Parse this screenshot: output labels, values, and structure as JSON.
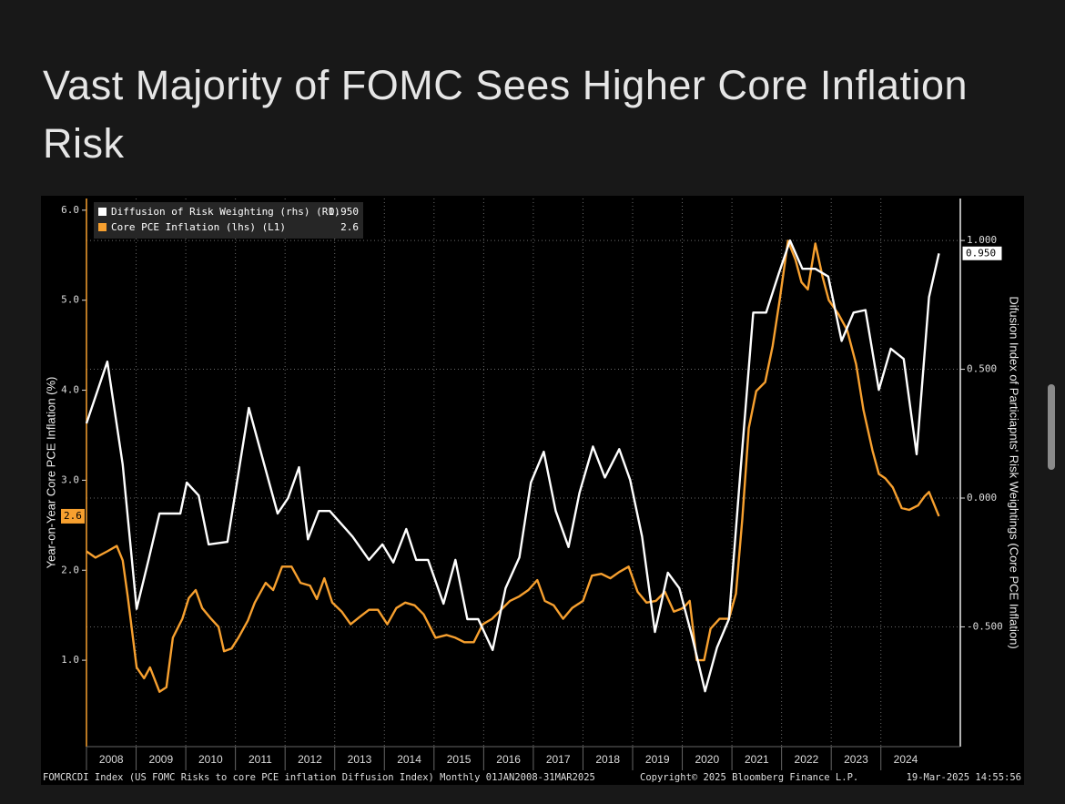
{
  "chart_data": {
    "type": "line",
    "title": "Vast Majority of FOMC Sees Higher Core Inflation Risk",
    "ylabel": "Year-on-Year Core PCE Inflation (%)",
    "y2label": "Difusion Index of Particiapnts' Risk Weightings (Core PCE Inflation)",
    "footnote": "FOMCRCDI Index (US FOMC Risks to core PCE inflation Diffusion Index)  Monthly 01JAN2008-31MAR2025",
    "copyright": "Copyright© 2025 Bloomberg Finance L.P.",
    "timestamp": "19-Mar-2025 14:55:56",
    "legend": "upper left",
    "grid": true,
    "xlim": [
      2008,
      2025.6
    ],
    "xticks": [
      2008,
      2009,
      2010,
      2011,
      2012,
      2013,
      2014,
      2015,
      2016,
      2017,
      2018,
      2019,
      2020,
      2021,
      2022,
      2023,
      2024
    ],
    "ylim": [
      0.04,
      6.13
    ],
    "yticks": [
      {
        "value": 1,
        "label": "1.0"
      },
      {
        "value": 2,
        "label": "2.0"
      },
      {
        "value": 3,
        "label": "3.0"
      },
      {
        "value": 4,
        "label": "4.0"
      },
      {
        "value": 5,
        "label": "5.0"
      },
      {
        "value": 6,
        "label": "6.0"
      }
    ],
    "y2lim": [
      -0.965,
      1.163
    ],
    "y2ticks": [
      {
        "value": -0.5,
        "label": "-0.500"
      },
      {
        "value": 0,
        "label": "0.000"
      },
      {
        "value": 0.5,
        "label": "0.500"
      },
      {
        "value": 1,
        "label": "1.000"
      }
    ],
    "series": [
      {
        "name": "Diffusion of Risk Weighting (rhs) (R1)",
        "color": "#ffffff",
        "axis": "y2",
        "last_label": "0.950",
        "x": [
          2008.0,
          2008.42,
          2008.73,
          2009.01,
          2009.25,
          2009.47,
          2009.89,
          2010.02,
          2010.26,
          2010.46,
          2010.84,
          2011.03,
          2011.27,
          2011.58,
          2011.85,
          2012.06,
          2012.28,
          2012.46,
          2012.68,
          2012.9,
          2013.36,
          2013.69,
          2013.96,
          2014.18,
          2014.44,
          2014.64,
          2014.88,
          2015.19,
          2015.43,
          2015.67,
          2015.89,
          2016.18,
          2016.44,
          2016.72,
          2016.95,
          2017.21,
          2017.45,
          2017.71,
          2017.93,
          2018.2,
          2018.44,
          2018.73,
          2018.95,
          2019.19,
          2019.45,
          2019.71,
          2019.94,
          2020.2,
          2020.46,
          2020.7,
          2020.94,
          2021.17,
          2021.43,
          2021.69,
          2021.94,
          2022.17,
          2022.42,
          2022.68,
          2022.94,
          2023.21,
          2023.45,
          2023.69,
          2023.96,
          2024.2,
          2024.46,
          2024.72,
          2024.97,
          2025.17
        ],
        "values": [
          0.29,
          0.53,
          0.13,
          -0.43,
          -0.24,
          -0.06,
          -0.06,
          0.06,
          0.01,
          -0.18,
          -0.17,
          0.06,
          0.35,
          0.13,
          -0.06,
          0.0,
          0.12,
          -0.16,
          -0.05,
          -0.05,
          -0.15,
          -0.24,
          -0.18,
          -0.25,
          -0.12,
          -0.24,
          -0.24,
          -0.41,
          -0.24,
          -0.47,
          -0.47,
          -0.59,
          -0.35,
          -0.23,
          0.06,
          0.18,
          -0.05,
          -0.19,
          0.02,
          0.2,
          0.08,
          0.19,
          0.07,
          -0.15,
          -0.52,
          -0.29,
          -0.35,
          -0.54,
          -0.75,
          -0.58,
          -0.47,
          0.1,
          0.72,
          0.72,
          0.87,
          1.0,
          0.89,
          0.89,
          0.86,
          0.61,
          0.72,
          0.73,
          0.42,
          0.58,
          0.54,
          0.17,
          0.78,
          0.95
        ]
      },
      {
        "name": "Core PCE Inflation (lhs) (L1)",
        "color": "#f7a02f",
        "axis": "y",
        "last_label": "2.6",
        "x": [
          2008.0,
          2008.18,
          2008.42,
          2008.61,
          2008.73,
          2008.83,
          2009.01,
          2009.16,
          2009.28,
          2009.47,
          2009.61,
          2009.74,
          2009.93,
          2010.06,
          2010.2,
          2010.33,
          2010.51,
          2010.66,
          2010.77,
          2010.92,
          2011.06,
          2011.25,
          2011.39,
          2011.61,
          2011.76,
          2011.94,
          2012.13,
          2012.31,
          2012.5,
          2012.64,
          2012.79,
          2012.95,
          2013.14,
          2013.32,
          2013.5,
          2013.69,
          2013.87,
          2014.06,
          2014.24,
          2014.42,
          2014.61,
          2014.79,
          2015.03,
          2015.25,
          2015.43,
          2015.61,
          2015.8,
          2015.98,
          2016.17,
          2016.35,
          2016.53,
          2016.72,
          2016.9,
          2017.08,
          2017.23,
          2017.41,
          2017.6,
          2017.78,
          2018.0,
          2018.18,
          2018.37,
          2018.55,
          2018.73,
          2018.92,
          2019.1,
          2019.28,
          2019.47,
          2019.65,
          2019.83,
          2020.02,
          2020.15,
          2020.29,
          2020.44,
          2020.57,
          2020.75,
          2020.94,
          2021.08,
          2021.21,
          2021.34,
          2021.49,
          2021.67,
          2021.82,
          2021.96,
          2022.13,
          2022.28,
          2022.4,
          2022.53,
          2022.68,
          2022.83,
          2022.95,
          2023.14,
          2023.32,
          2023.5,
          2023.65,
          2023.83,
          2023.96,
          2024.09,
          2024.24,
          2024.42,
          2024.57,
          2024.75,
          2024.88,
          2024.97,
          2025.17
        ],
        "values": [
          2.21,
          2.14,
          2.21,
          2.27,
          2.11,
          1.71,
          0.92,
          0.8,
          0.92,
          0.65,
          0.7,
          1.25,
          1.46,
          1.69,
          1.78,
          1.58,
          1.46,
          1.37,
          1.1,
          1.13,
          1.25,
          1.44,
          1.64,
          1.86,
          1.78,
          2.04,
          2.04,
          1.86,
          1.83,
          1.68,
          1.91,
          1.64,
          1.54,
          1.4,
          1.48,
          1.56,
          1.56,
          1.4,
          1.58,
          1.64,
          1.61,
          1.51,
          1.25,
          1.28,
          1.25,
          1.2,
          1.2,
          1.4,
          1.46,
          1.56,
          1.66,
          1.71,
          1.78,
          1.89,
          1.66,
          1.61,
          1.46,
          1.58,
          1.66,
          1.94,
          1.96,
          1.91,
          1.98,
          2.04,
          1.76,
          1.64,
          1.66,
          1.76,
          1.54,
          1.58,
          1.66,
          1.0,
          1.0,
          1.35,
          1.46,
          1.46,
          1.74,
          2.57,
          3.58,
          3.99,
          4.09,
          4.49,
          5.0,
          5.66,
          5.45,
          5.2,
          5.12,
          5.63,
          5.25,
          5.0,
          4.85,
          4.67,
          4.29,
          3.78,
          3.33,
          3.07,
          3.02,
          2.92,
          2.69,
          2.67,
          2.72,
          2.82,
          2.87,
          2.6
        ]
      }
    ]
  }
}
